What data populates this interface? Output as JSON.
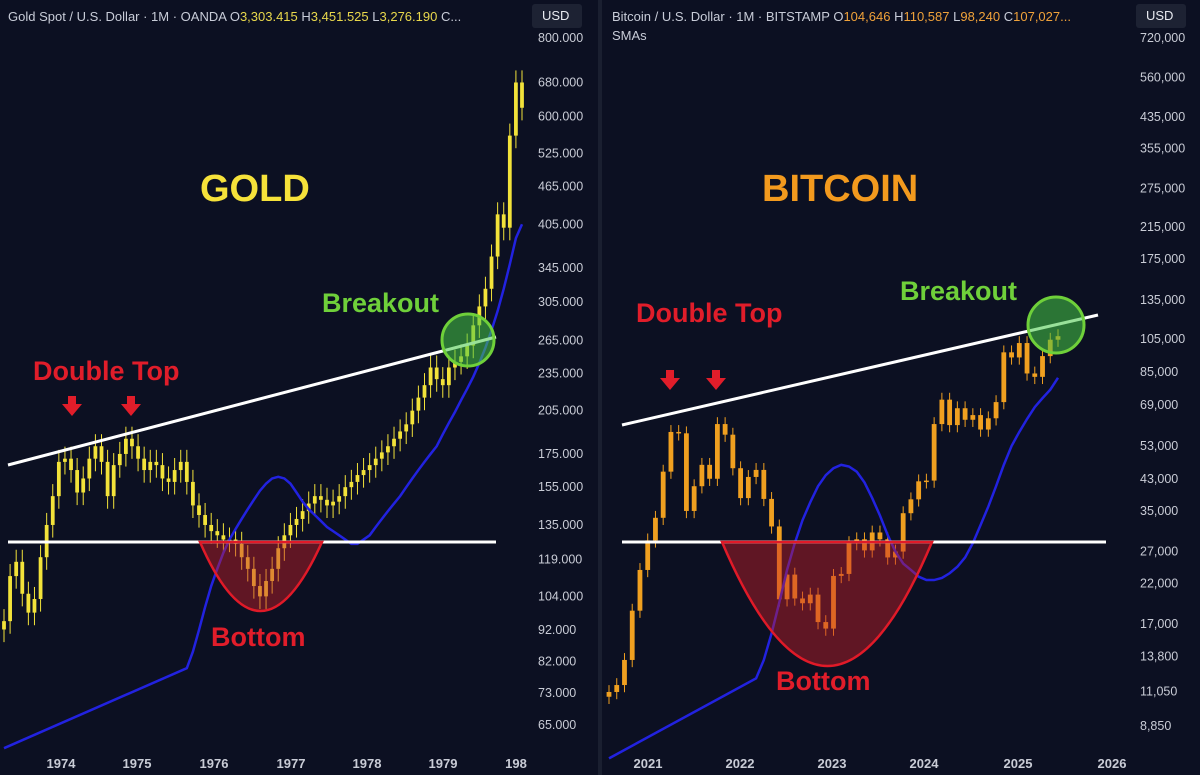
{
  "left_panel": {
    "header": {
      "symbol": "Gold Spot / U.S. Dollar · 1M · OANDA",
      "o_label": "O",
      "o": "3,303.415",
      "h_label": "H",
      "h": "3,451.525",
      "l_label": "L",
      "l": "3,276.190",
      "c_label": "C..."
    },
    "currency_button": "USD",
    "title": "GOLD",
    "annotations": {
      "double_top": "Double Top",
      "breakout": "Breakout",
      "bottom": "Bottom"
    },
    "colors": {
      "candle": "#f2e23a",
      "sma": "#2222e0",
      "title": "#f6e23a",
      "annotation_red": "#e11d2a",
      "annotation_green": "#6fd03a"
    }
  },
  "right_panel": {
    "header": {
      "symbol": "Bitcoin / U.S. Dollar · 1M · BITSTAMP",
      "o_label": "O",
      "o": "104,646",
      "h_label": "H",
      "h": "110,587",
      "l_label": "L",
      "l": "98,240",
      "c_label": "C",
      "c": "107,027..."
    },
    "indicator": "SMAs",
    "currency_button": "USD",
    "title": "BITCOIN",
    "annotations": {
      "double_top": "Double Top",
      "breakout": "Breakout",
      "bottom": "Bottom"
    },
    "colors": {
      "candle": "#f0a020",
      "sma": "#2222e0",
      "title": "#f39a1e",
      "annotation_red": "#e11d2a",
      "annotation_green": "#6fd03a"
    }
  },
  "chart_data": [
    {
      "type": "candlestick",
      "title": "GOLD",
      "series_name": "Gold Spot / U.S. Dollar",
      "y_scale": "log",
      "y_ticks": [
        "800.000",
        "680.000",
        "600.000",
        "525.000",
        "465.000",
        "405.000",
        "345.000",
        "305.000",
        "265.000",
        "235.000",
        "205.000",
        "175.000",
        "155.000",
        "135.000",
        "119.000",
        "104.000",
        "92.000",
        "82.000",
        "73.000",
        "65.000"
      ],
      "x_ticks": [
        "1974",
        "1975",
        "1976",
        "1977",
        "1978",
        "1979",
        "198"
      ],
      "ylim": [
        62,
        850
      ],
      "closes": [
        95,
        112,
        118,
        105,
        98,
        103,
        120,
        135,
        150,
        170,
        172,
        165,
        152,
        160,
        172,
        180,
        170,
        150,
        168,
        175,
        185,
        180,
        172,
        165,
        170,
        168,
        160,
        158,
        165,
        170,
        158,
        145,
        140,
        135,
        132,
        130,
        128,
        128,
        126,
        120,
        115,
        108,
        104,
        110,
        115,
        124,
        130,
        135,
        138,
        142,
        146,
        150,
        148,
        145,
        147,
        150,
        155,
        158,
        162,
        165,
        168,
        172,
        176,
        180,
        185,
        190,
        195,
        205,
        215,
        225,
        240,
        230,
        225,
        240,
        245,
        250,
        260,
        280,
        300,
        320,
        360,
        420,
        400,
        560,
        680,
        620
      ],
      "sma_values": [
        80,
        85,
        92,
        100,
        108,
        115,
        122,
        128,
        133,
        138,
        143,
        148,
        153,
        157,
        160,
        161,
        160,
        157,
        152,
        147,
        143,
        140,
        137,
        134,
        132,
        130,
        128,
        126,
        126,
        128,
        130,
        134,
        138,
        142,
        146,
        150,
        155,
        160,
        165,
        170,
        175,
        180,
        188,
        196,
        204,
        213,
        222,
        232,
        244,
        258,
        275,
        295,
        320,
        350,
        385,
        405
      ],
      "resistance_line": {
        "from": [
          "1973",
          168
        ],
        "to": [
          "1979",
          262
        ]
      },
      "support_level": 128,
      "annotations": [
        "Double Top",
        "Breakout",
        "Bottom"
      ]
    },
    {
      "type": "candlestick",
      "title": "BITCOIN",
      "series_name": "Bitcoin / U.S. Dollar",
      "y_scale": "log",
      "y_ticks": [
        "720,000",
        "560,000",
        "435,000",
        "355,000",
        "275,000",
        "215,000",
        "175,000",
        "135,000",
        "105,000",
        "85,000",
        "69,000",
        "53,000",
        "43,000",
        "35,000",
        "27,000",
        "22,000",
        "17,000",
        "13,800",
        "11,050",
        "8,850"
      ],
      "x_ticks": [
        "2021",
        "2022",
        "2023",
        "2024",
        "2025",
        "2026"
      ],
      "ylim": [
        8200,
        800000
      ],
      "closes": [
        11000,
        11500,
        13500,
        18500,
        24000,
        29000,
        33500,
        45000,
        58000,
        57500,
        35000,
        41000,
        47000,
        43000,
        61000,
        57000,
        46000,
        38000,
        43500,
        45500,
        37800,
        31700,
        19900,
        23300,
        20000,
        19400,
        20500,
        17200,
        16500,
        23100,
        23400,
        28500,
        29200,
        27200,
        30500,
        29200,
        26000,
        27000,
        34500,
        37700,
        42300,
        42500,
        61000,
        71300,
        60600,
        67500,
        62700,
        64600,
        58900,
        63300,
        70200,
        96500,
        93400,
        102400,
        84300,
        82500,
        94200,
        104600,
        107000
      ],
      "sma_values": [
        12000,
        13500,
        16000,
        19500,
        24000,
        28500,
        33000,
        37000,
        41000,
        44000,
        46000,
        47000,
        46500,
        45000,
        42000,
        38000,
        34000,
        30000,
        27000,
        25000,
        24000,
        23000,
        22500,
        22500,
        22800,
        23500,
        24500,
        26000,
        28500,
        32000,
        36000,
        41000,
        47000,
        53000,
        58000,
        63000,
        68000,
        72000,
        76000,
        82000
      ],
      "resistance_line": {
        "from": [
          "2020.9",
          57000
        ],
        "to": [
          "2025.5",
          125000
        ]
      },
      "support_level": 28800,
      "annotations": [
        "Double Top",
        "Breakout",
        "Bottom"
      ]
    }
  ]
}
